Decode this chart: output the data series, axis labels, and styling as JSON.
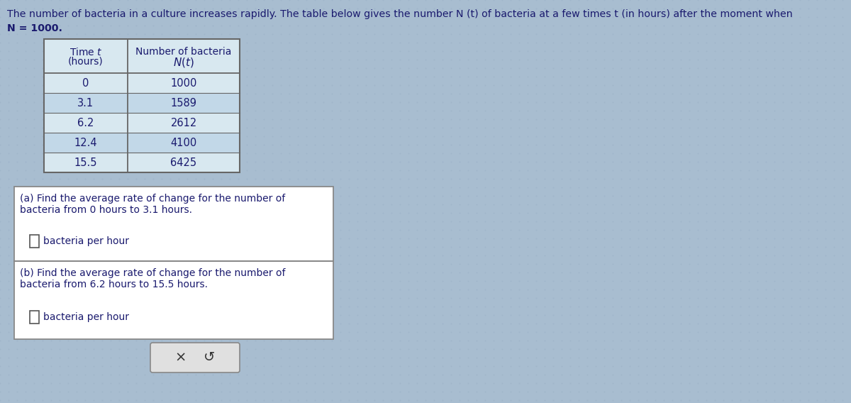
{
  "table_times": [
    "0",
    "3.1",
    "6.2",
    "12.4",
    "15.5"
  ],
  "table_bacteria": [
    "1000",
    "1589",
    "2612",
    "4100",
    "6425"
  ],
  "part_a_text1": "(a) Find the average rate of change for the number of",
  "part_a_text2": "bacteria from 0 hours to 3.1 hours.",
  "part_a_unit": "bacteria per hour",
  "part_b_text1": "(b) Find the average rate of change for the number of",
  "part_b_text2": "bacteria from 6.2 hours to 15.5 hours.",
  "part_b_unit": "bacteria per hour",
  "bg_color": "#a8bdd0",
  "table_bg_light": "#d8e8f0",
  "table_bg_dark": "#c2d8e8",
  "box_bg": "#ffffff",
  "text_color": "#1a1a6e",
  "border_color": "#666666",
  "button_bg": "#e0e0e0",
  "title_line1": "The number of bacteria in a culture increases rapidly. The table below gives the number N (t) of bacteria at a few times t (in hours) after the moment when",
  "title_line2": "N = 1000."
}
